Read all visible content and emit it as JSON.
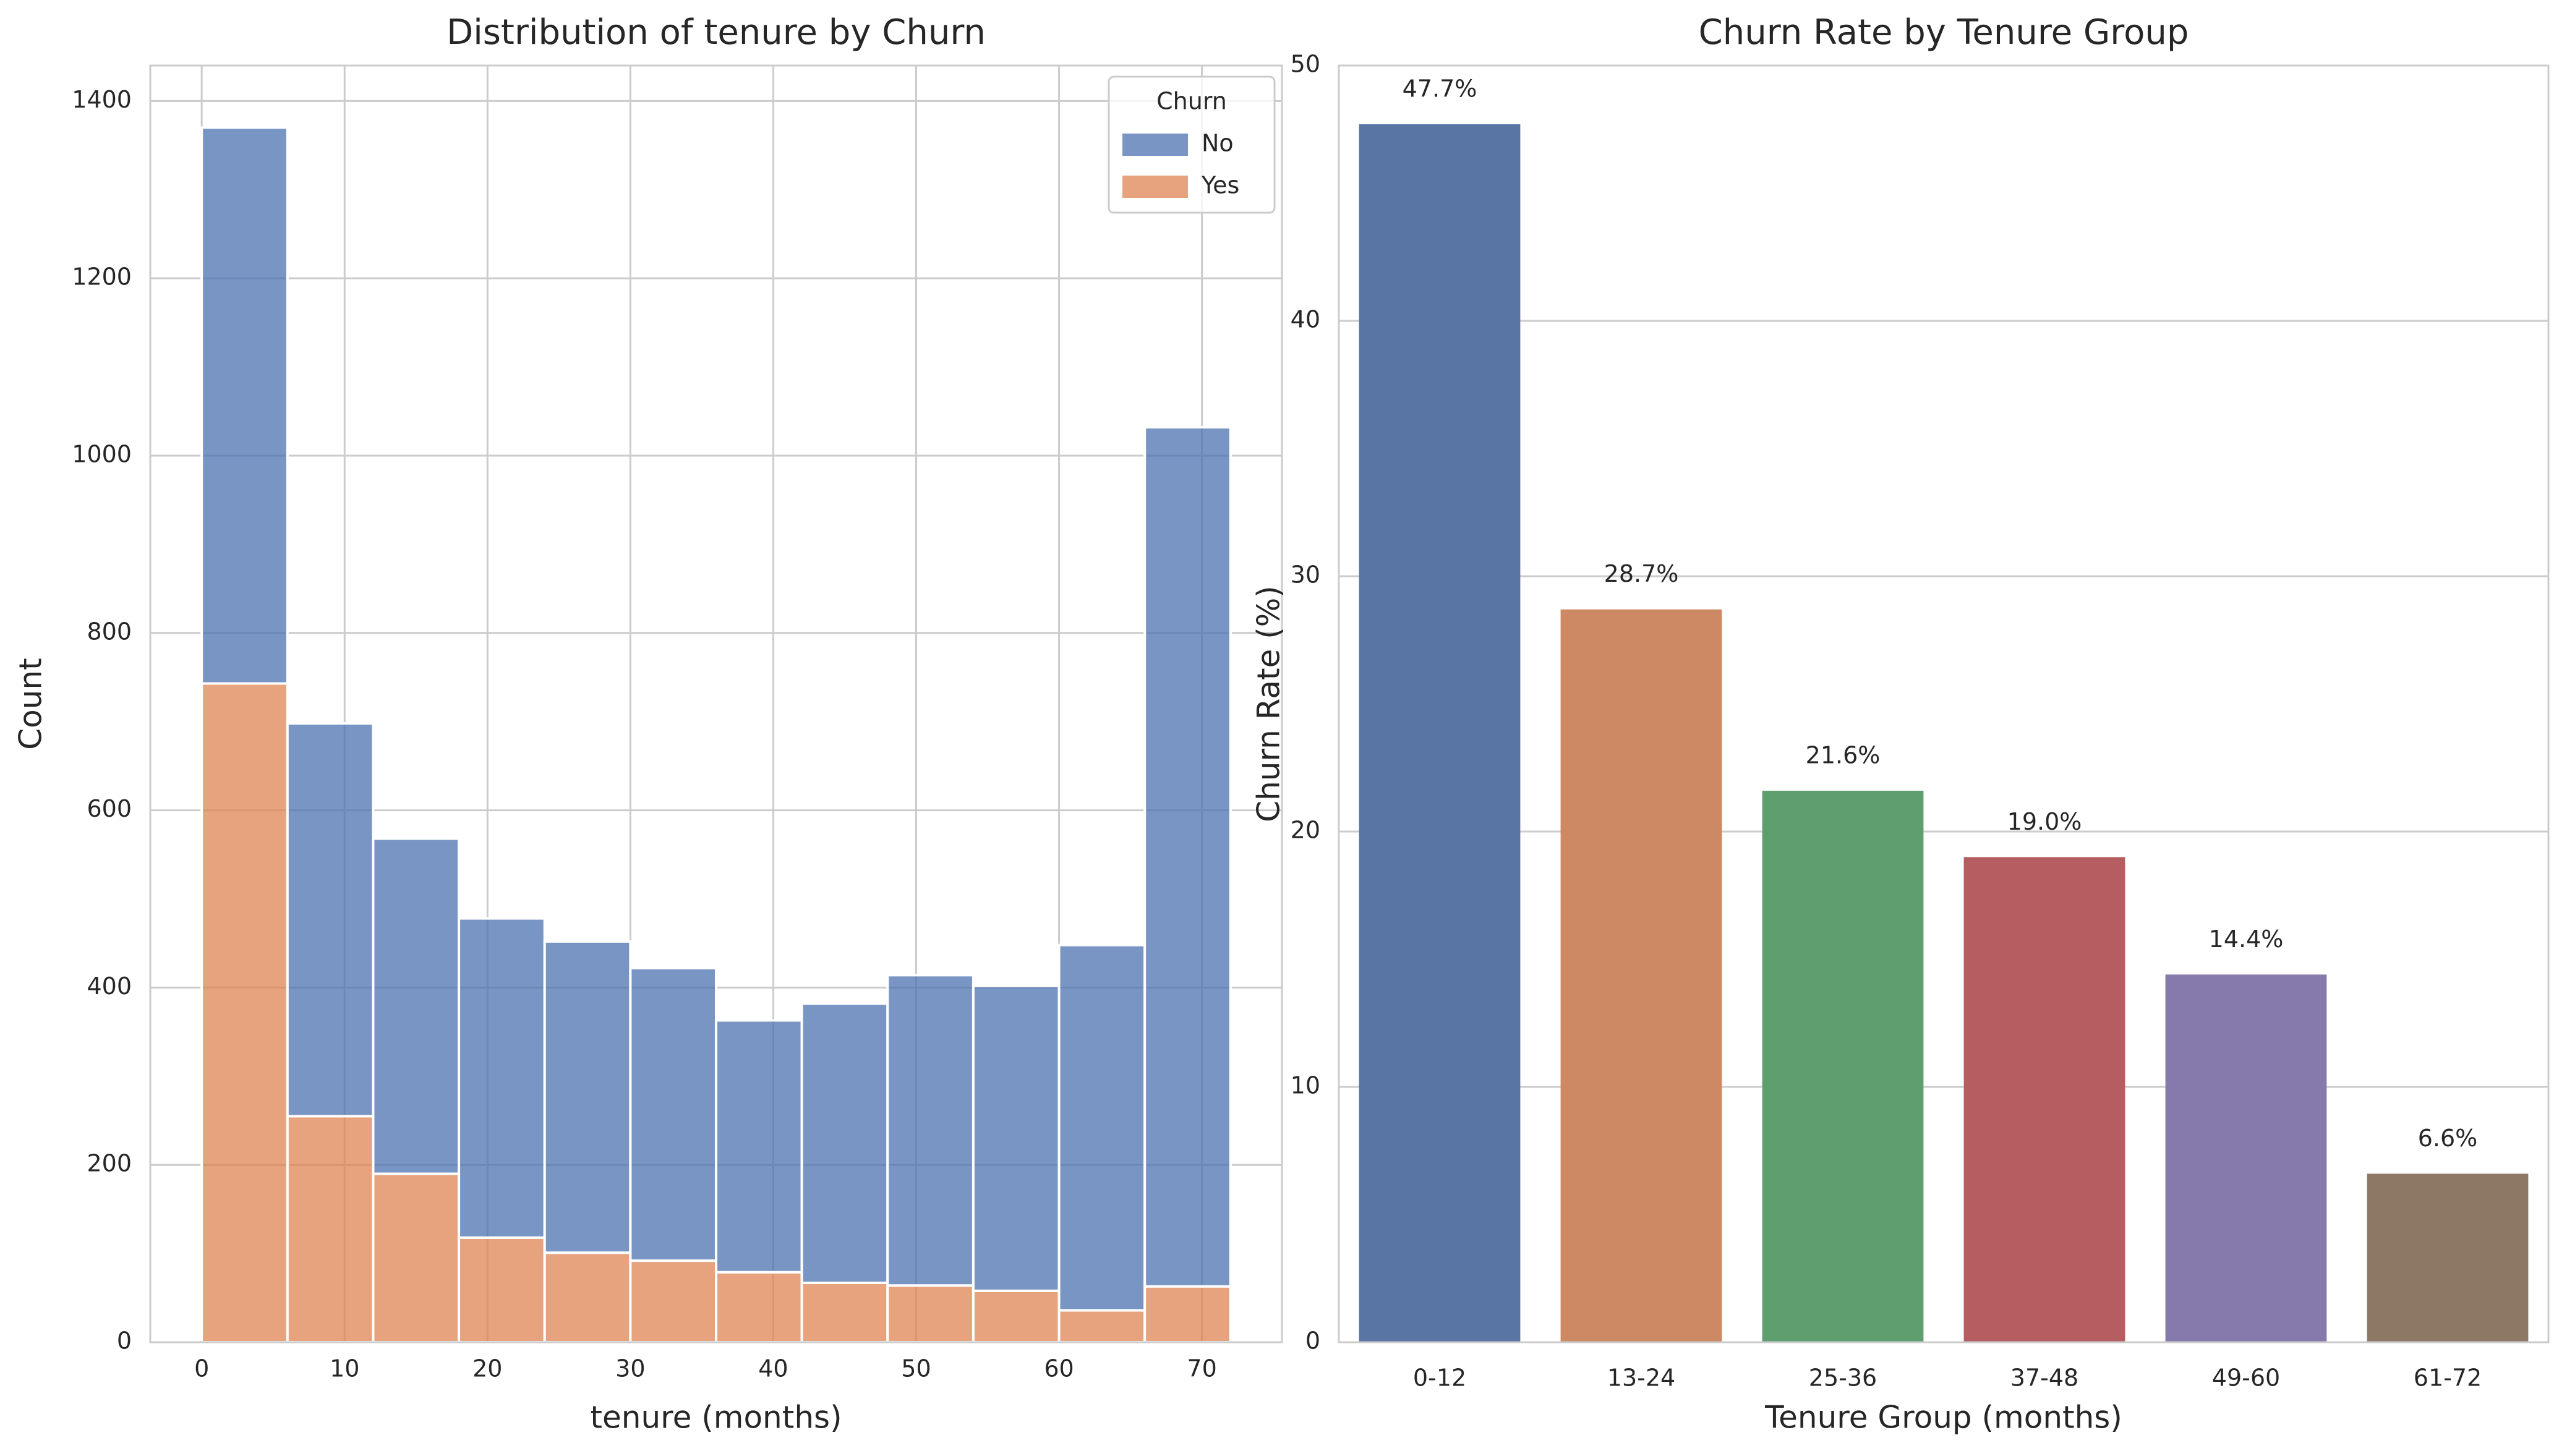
{
  "chart_data": [
    {
      "type": "histogram",
      "title": "Distribution of tenure by Churn",
      "x_label": "tenure (months)",
      "y_label": "Count",
      "bins": [
        0,
        6,
        12,
        18,
        24,
        30,
        36,
        42,
        48,
        54,
        60,
        66,
        72
      ],
      "series": [
        {
          "name": "No",
          "color": "#4c72b0",
          "values": [
            627,
            443,
            378,
            360,
            351,
            330,
            284,
            315,
            350,
            344,
            412,
            969
          ]
        },
        {
          "name": "Yes",
          "color": "#dd8452",
          "values": [
            743,
            255,
            190,
            118,
            101,
            92,
            79,
            67,
            64,
            58,
            36,
            63
          ]
        }
      ],
      "legend_title": "Churn",
      "legend": "upper right",
      "xlim": [
        -3.6,
        75.6
      ],
      "xticks": [
        0,
        10,
        20,
        30,
        40,
        50,
        60,
        70
      ],
      "ylim": [
        0,
        1440
      ],
      "yticks": [
        0,
        200,
        400,
        600,
        800,
        1000,
        1200,
        1400
      ],
      "grid": true
    },
    {
      "type": "bar",
      "title": "Churn Rate by Tenure Group",
      "x_label": "Tenure Group (months)",
      "y_label": "Churn Rate (%)",
      "categories": [
        "0-12",
        "13-24",
        "25-36",
        "37-48",
        "49-60",
        "61-72"
      ],
      "values": [
        47.7,
        28.7,
        21.6,
        19.0,
        14.4,
        6.6
      ],
      "value_labels": [
        "47.7%",
        "28.7%",
        "21.6%",
        "19.0%",
        "14.4%",
        "6.6%"
      ],
      "colors": [
        "#5975a4",
        "#cc8963",
        "#5f9e6e",
        "#b55d60",
        "#857aab",
        "#8d7866"
      ],
      "ylim": [
        0,
        50
      ],
      "yticks": [
        0,
        10,
        20,
        30,
        40,
        50
      ],
      "grid": true
    }
  ]
}
